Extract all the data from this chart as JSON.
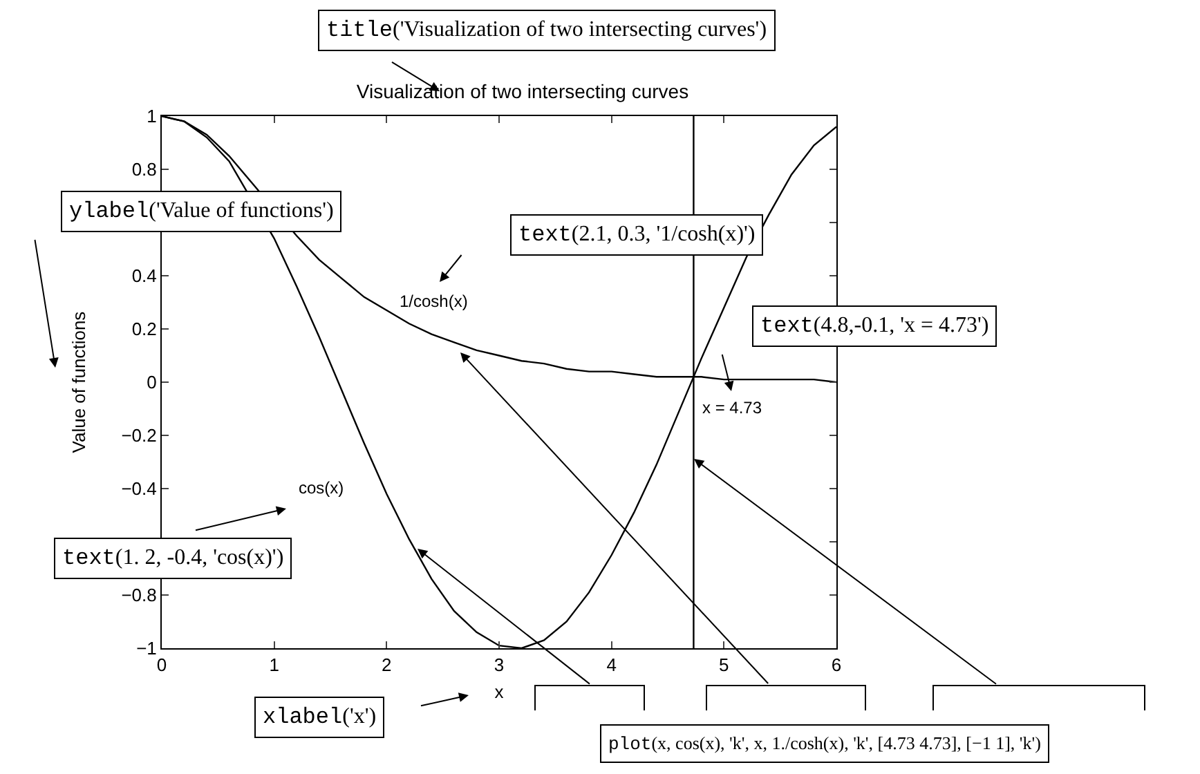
{
  "chart_data": {
    "type": "line",
    "title": "Visualization of two intersecting curves",
    "xlabel": "x",
    "ylabel": "Value of functions",
    "x": [
      0,
      0.2,
      0.4,
      0.6,
      0.8,
      1,
      1.2,
      1.4,
      1.6,
      1.8,
      2,
      2.2,
      2.4,
      2.6,
      2.8,
      3,
      3.2,
      3.4,
      3.6,
      3.8,
      4,
      4.2,
      4.4,
      4.6,
      4.8,
      5,
      5.2,
      5.4,
      5.6,
      5.8,
      6
    ],
    "series": [
      {
        "color": "#000000",
        "values": [
          1,
          0.98,
          0.92,
          0.83,
          null,
          0.54,
          0.36,
          0.17,
          -0.03,
          -0.23,
          -0.42,
          -0.59,
          -0.74,
          -0.86,
          -0.94,
          -0.99,
          -1.0,
          -0.97,
          -0.9,
          -0.79,
          -0.65,
          -0.49,
          -0.31,
          -0.11,
          0.09,
          0.28,
          0.47,
          0.63,
          0.78,
          0.89,
          0.96
        ]
      },
      {
        "color": "#000000",
        "values": [
          1,
          0.98,
          0.93,
          0.85,
          0.75,
          null,
          0.55,
          0.46,
          0.39,
          0.32,
          0.27,
          0.22,
          0.18,
          0.15,
          0.12,
          0.1,
          0.08,
          0.07,
          0.05,
          0.04,
          0.04,
          0.03,
          0.02,
          0.02,
          0.02,
          0.01,
          0.01,
          0.01,
          0.01,
          0.01,
          0.0
        ]
      },
      {
        "color": "#000000",
        "x": [
          4.73,
          4.73
        ],
        "values": [
          -1,
          1
        ]
      }
    ],
    "xlim": [
      0,
      6
    ],
    "xticks": [
      0,
      1,
      2,
      3,
      4,
      5,
      6
    ],
    "ylim": [
      -1,
      1
    ],
    "yticks": [
      {
        "value": -1,
        "label": "−1"
      },
      {
        "value": -0.8,
        "label": "−0.8"
      },
      {
        "value": -0.6,
        "label": null
      },
      {
        "value": -0.4,
        "label": "−0.4"
      },
      {
        "value": -0.2,
        "label": "−0.2"
      },
      0,
      0.2,
      0.4,
      {
        "value": 0.6,
        "label": null
      },
      0.8,
      1
    ],
    "grid": false,
    "marker": "none",
    "line_style": "solid",
    "annotations": [
      "title('Visualization of two intersecting curves')",
      "ylabel('Value of functions')",
      "text(2.1, 0.3, '1/cosh(x)')",
      "text(4.8,-0.1, 'x = 4.73')",
      "text(1. 2, -0.4, 'cos(x)')",
      "xlabel('x')",
      "plot(x, cos(x), 'k', x, 1./cosh(x), 'k', [4.73 4.73], [−1 1], 'k')",
      "1/cosh(x)",
      "x = 4.73",
      "cos(x)"
    ]
  }
}
